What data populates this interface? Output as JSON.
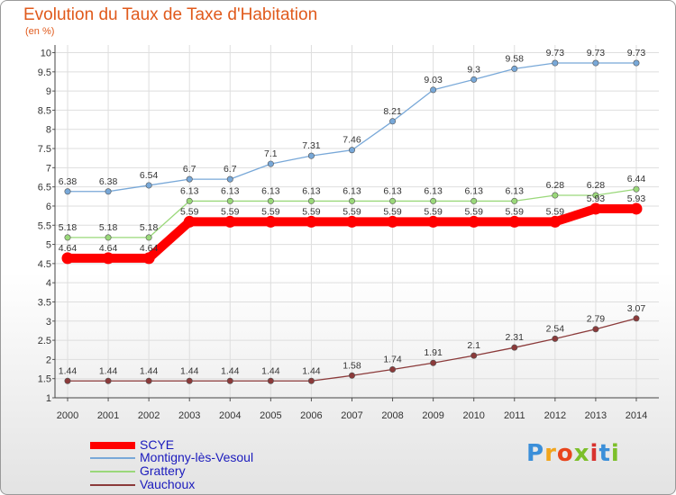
{
  "title": "Evolution du Taux de Taxe d'Habitation",
  "subtitle": "(en %)",
  "logo": {
    "letters": [
      "P",
      "r",
      "o",
      "x",
      "i",
      "t",
      "i"
    ],
    "colors": [
      "#3b8fd9",
      "#f2a51c",
      "#e8451c",
      "#7cbf2a",
      "#d8322e",
      "#3b8fd9",
      "#7cbf2a"
    ]
  },
  "chart_data": {
    "type": "line",
    "title": "Evolution du Taux de Taxe d'Habitation",
    "ylabel": "(en %)",
    "xlabel": "",
    "x": [
      "2000",
      "2001",
      "2002",
      "2003",
      "2004",
      "2005",
      "2006",
      "2007",
      "2008",
      "2009",
      "2010",
      "2011",
      "2012",
      "2013",
      "2014"
    ],
    "ylim": [
      1,
      10.2
    ],
    "yticks": [
      "1",
      "1.5",
      "2",
      "2.5",
      "3",
      "3.5",
      "4",
      "4.5",
      "5",
      "5.5",
      "6",
      "6.5",
      "7",
      "7.5",
      "8",
      "8.5",
      "9",
      "9.5",
      "10"
    ],
    "grid": true,
    "legend_position": "bottom-left",
    "series": [
      {
        "name": "SCYE",
        "color": "#ff0000",
        "values": [
          4.64,
          4.64,
          4.64,
          5.59,
          5.59,
          5.59,
          5.59,
          5.59,
          5.59,
          5.59,
          5.59,
          5.59,
          5.59,
          5.93,
          5.93
        ],
        "labels": [
          "4.64",
          "4.64",
          "4.64",
          "5.59",
          "5.59",
          "5.59",
          "5.59",
          "5.59",
          "5.59",
          "5.59",
          "5.59",
          "5.59",
          "5.59",
          "5.93",
          "5.93"
        ]
      },
      {
        "name": "Montigny-lès-Vesoul",
        "color": "#78a8d8",
        "values": [
          6.38,
          6.38,
          6.54,
          6.7,
          6.7,
          7.1,
          7.31,
          7.46,
          8.21,
          9.03,
          9.3,
          9.58,
          9.73,
          9.73,
          9.73
        ],
        "labels": [
          "6.38",
          "6.38",
          "6.54",
          "6.7",
          "6.7",
          "7.1",
          "7.31",
          "7.46",
          "8.21",
          "9.03",
          "9.3",
          "9.58",
          "9.73",
          "9.73",
          "9.73"
        ]
      },
      {
        "name": "Grattery",
        "color": "#9ad87a",
        "values": [
          5.18,
          5.18,
          5.18,
          6.13,
          6.13,
          6.13,
          6.13,
          6.13,
          6.13,
          6.13,
          6.13,
          6.13,
          6.28,
          6.28,
          6.44
        ],
        "labels": [
          "5.18",
          "5.18",
          "5.18",
          "6.13",
          "6.13",
          "6.13",
          "6.13",
          "6.13",
          "6.13",
          "6.13",
          "6.13",
          "6.13",
          "6.28",
          "6.28",
          "6.44"
        ]
      },
      {
        "name": "Vauchoux",
        "color": "#8b3a3a",
        "values": [
          1.44,
          1.44,
          1.44,
          1.44,
          1.44,
          1.44,
          1.44,
          1.58,
          1.74,
          1.91,
          2.1,
          2.31,
          2.54,
          2.79,
          3.07
        ],
        "labels": [
          "1.44",
          "1.44",
          "1.44",
          "1.44",
          "1.44",
          "1.44",
          "1.44",
          "1.58",
          "1.74",
          "1.91",
          "2.1",
          "2.31",
          "2.54",
          "2.79",
          "3.07"
        ]
      }
    ]
  }
}
